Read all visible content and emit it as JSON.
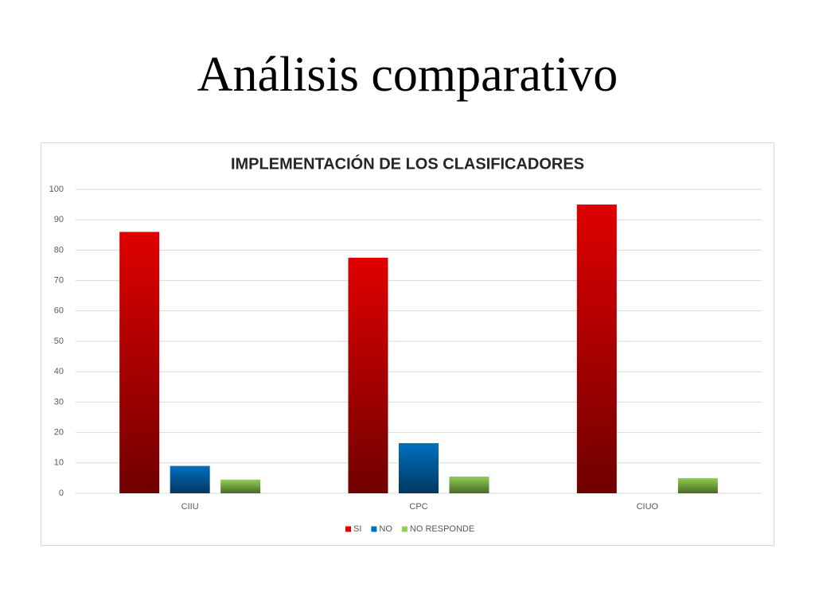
{
  "heading": "Análisis comparativo",
  "chart_data": {
    "type": "bar",
    "title": "IMPLEMENTACIÓN DE LOS CLASIFICADORES",
    "categories": [
      "CIIU",
      "CPC",
      "CIUO"
    ],
    "series": [
      {
        "name": "SI",
        "color": "#e00000",
        "values": [
          86,
          77.5,
          95
        ]
      },
      {
        "name": "NO",
        "color": "#0070c0",
        "values": [
          9,
          16.5,
          0
        ]
      },
      {
        "name": "NO RESPONDE",
        "color": "#92d050",
        "values": [
          4.5,
          5.5,
          5
        ]
      }
    ],
    "ylim": [
      0,
      100
    ],
    "yticks": [
      0,
      10,
      20,
      30,
      40,
      50,
      60,
      70,
      80,
      90,
      100
    ],
    "grid": true,
    "legend": "bottom"
  }
}
